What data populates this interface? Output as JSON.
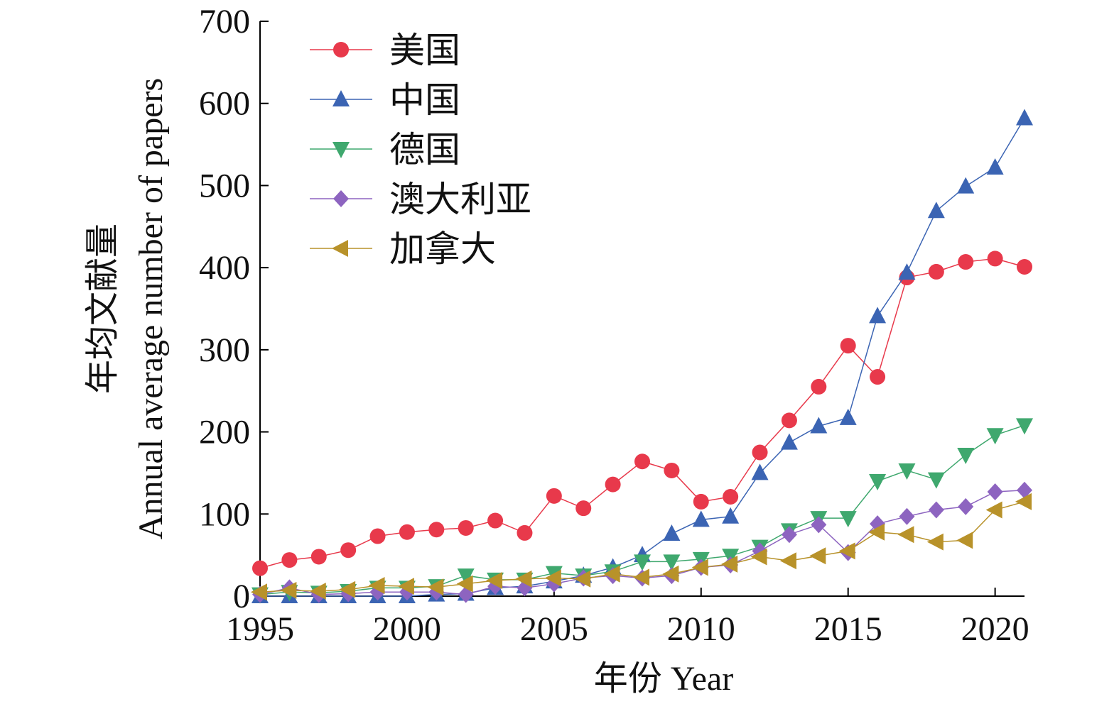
{
  "chart_data": {
    "type": "line",
    "xlabel": "年份 Year",
    "ylabel_line1": "年均文献量",
    "ylabel_line2": "Annual average number of papers",
    "xlim": [
      1995,
      2021
    ],
    "ylim": [
      0,
      700
    ],
    "xticks": [
      1995,
      2000,
      2005,
      2010,
      2015,
      2020
    ],
    "yticks": [
      0,
      100,
      200,
      300,
      400,
      500,
      600,
      700
    ],
    "grid": false,
    "legend_position": "top-left",
    "x": [
      1995,
      1996,
      1997,
      1998,
      1999,
      2000,
      2001,
      2002,
      2003,
      2004,
      2005,
      2006,
      2007,
      2008,
      2009,
      2010,
      2011,
      2012,
      2013,
      2014,
      2015,
      2016,
      2017,
      2018,
      2019,
      2020,
      2021
    ],
    "series": [
      {
        "name": "美国",
        "color": "#e8394b",
        "marker": "circle",
        "values": [
          34,
          44,
          48,
          56,
          73,
          78,
          81,
          83,
          92,
          77,
          122,
          107,
          136,
          164,
          153,
          115,
          121,
          175,
          214,
          255,
          305,
          267,
          388,
          395,
          407,
          411,
          401
        ]
      },
      {
        "name": "中国",
        "color": "#3b64b3",
        "marker": "triangle-up",
        "values": [
          0,
          0,
          0,
          0,
          0,
          0,
          2,
          3,
          10,
          12,
          18,
          25,
          35,
          50,
          76,
          93,
          97,
          150,
          187,
          207,
          217,
          341,
          394,
          469,
          499,
          522,
          582
        ]
      },
      {
        "name": "德国",
        "color": "#3fa86e",
        "marker": "triangle-down",
        "values": [
          2,
          5,
          4,
          6,
          10,
          10,
          12,
          25,
          20,
          20,
          28,
          25,
          30,
          42,
          42,
          45,
          49,
          60,
          80,
          95,
          95,
          140,
          153,
          142,
          172,
          196,
          208
        ]
      },
      {
        "name": "澳大利亚",
        "color": "#8d64c0",
        "marker": "diamond",
        "values": [
          2,
          10,
          2,
          3,
          5,
          5,
          5,
          2,
          12,
          10,
          15,
          22,
          25,
          22,
          25,
          35,
          38,
          55,
          75,
          87,
          53,
          88,
          97,
          105,
          109,
          127,
          129
        ]
      },
      {
        "name": "加拿大",
        "color": "#b8922a",
        "marker": "triangle-left",
        "values": [
          5,
          7,
          6,
          8,
          13,
          12,
          11,
          15,
          19,
          21,
          22,
          21,
          27,
          23,
          27,
          35,
          39,
          48,
          43,
          49,
          55,
          78,
          75,
          66,
          68,
          105,
          115
        ]
      }
    ]
  }
}
